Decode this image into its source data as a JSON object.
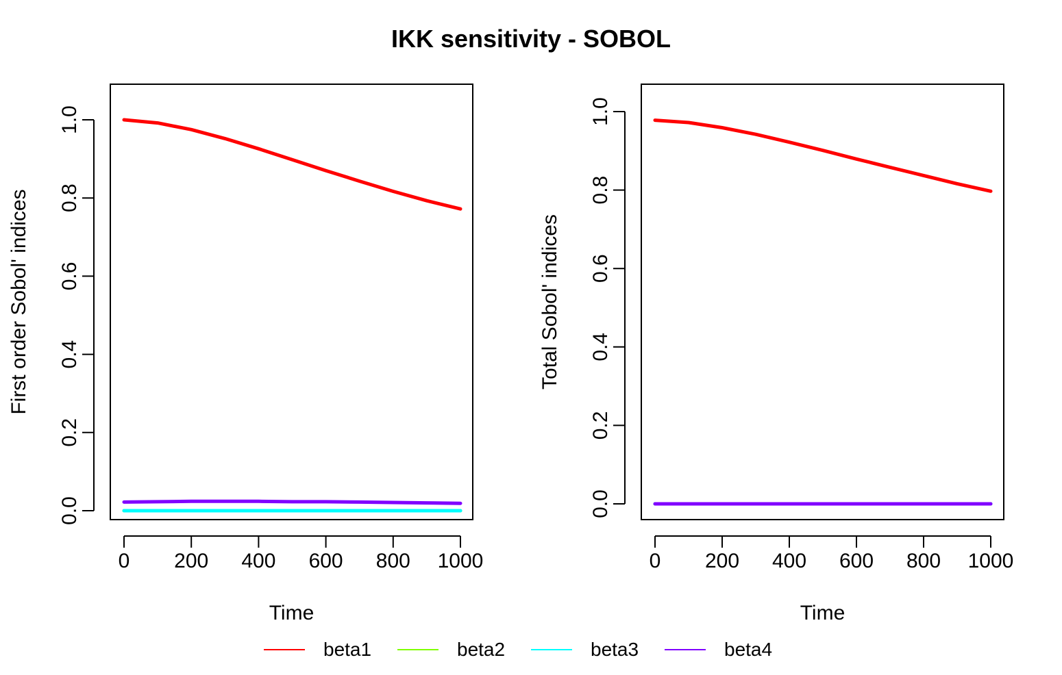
{
  "figure": {
    "title": "IKK sensitivity - SOBOL"
  },
  "legend": [
    {
      "name": "beta1",
      "color": "#FF0000"
    },
    {
      "name": "beta2",
      "color": "#80FF00"
    },
    {
      "name": "beta3",
      "color": "#00FFFF"
    },
    {
      "name": "beta4",
      "color": "#8000FF"
    }
  ],
  "chart_data": [
    {
      "type": "line",
      "xlabel": "Time",
      "ylabel": "First order Sobol' indices",
      "xlim": [
        0,
        1000
      ],
      "ylim": [
        0.0,
        1.0
      ],
      "xticks": [
        0,
        200,
        400,
        600,
        800,
        1000
      ],
      "yticks": [
        "0.0",
        "0.2",
        "0.4",
        "0.6",
        "0.8",
        "1.0"
      ],
      "x": [
        0,
        100,
        200,
        300,
        400,
        500,
        600,
        700,
        800,
        900,
        1000
      ],
      "series": [
        {
          "name": "beta1",
          "color": "#FF0000",
          "values": [
            1.0,
            0.992,
            0.975,
            0.952,
            0.926,
            0.898,
            0.87,
            0.843,
            0.817,
            0.793,
            0.772
          ]
        },
        {
          "name": "beta2",
          "color": "#80FF00",
          "values": [
            0,
            0,
            0,
            0,
            0,
            0,
            0,
            0,
            0,
            0,
            0
          ]
        },
        {
          "name": "beta3",
          "color": "#00FFFF",
          "values": [
            0,
            0,
            0,
            0,
            0,
            0,
            0,
            0,
            0,
            0,
            0
          ]
        },
        {
          "name": "beta4",
          "color": "#8000FF",
          "values": [
            0.022,
            0.023,
            0.024,
            0.024,
            0.024,
            0.023,
            0.023,
            0.022,
            0.021,
            0.02,
            0.019
          ]
        }
      ]
    },
    {
      "type": "line",
      "xlabel": "Time",
      "ylabel": "Total Sobol' indices",
      "xlim": [
        0,
        1000
      ],
      "ylim": [
        0.0,
        1.0
      ],
      "xticks": [
        0,
        200,
        400,
        600,
        800,
        1000
      ],
      "yticks": [
        "0.0",
        "0.2",
        "0.4",
        "0.6",
        "0.8",
        "1.0"
      ],
      "x": [
        0,
        100,
        200,
        300,
        400,
        500,
        600,
        700,
        800,
        900,
        1000
      ],
      "series": [
        {
          "name": "beta1",
          "color": "#FF0000",
          "values": [
            0.978,
            0.972,
            0.959,
            0.942,
            0.922,
            0.901,
            0.879,
            0.858,
            0.837,
            0.816,
            0.797
          ]
        },
        {
          "name": "beta2",
          "color": "#80FF00",
          "values": [
            0,
            0,
            0,
            0,
            0,
            0,
            0,
            0,
            0,
            0,
            0
          ]
        },
        {
          "name": "beta3",
          "color": "#00FFFF",
          "values": [
            0,
            0,
            0,
            0,
            0,
            0,
            0,
            0,
            0,
            0,
            0
          ]
        },
        {
          "name": "beta4",
          "color": "#8000FF",
          "values": [
            0,
            0,
            0,
            0,
            0,
            0,
            0,
            0,
            0,
            0,
            0
          ]
        }
      ]
    }
  ]
}
